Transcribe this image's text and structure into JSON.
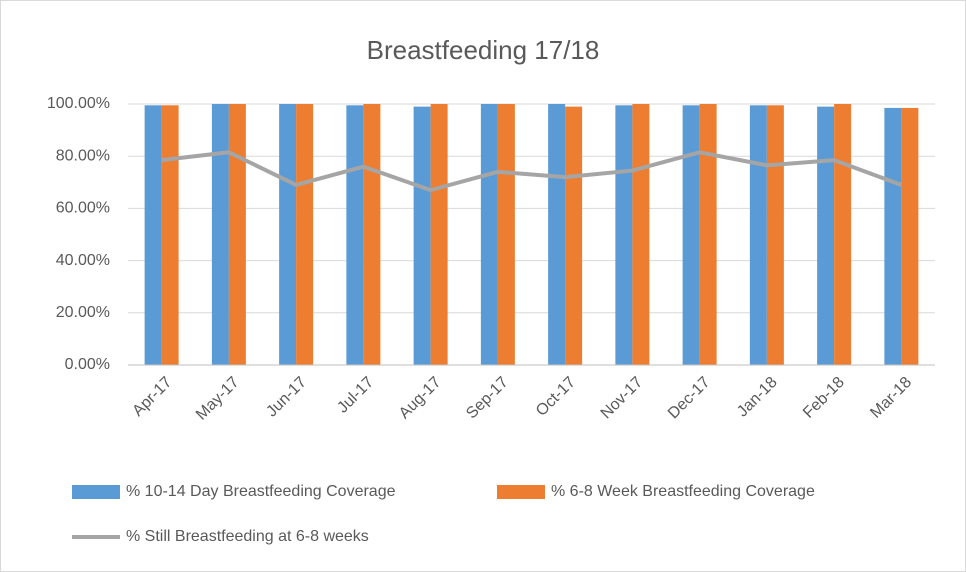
{
  "chart_data": {
    "type": "bar",
    "title": "Breastfeeding 17/18",
    "categories": [
      "Apr-17",
      "May-17",
      "Jun-17",
      "Jul-17",
      "Aug-17",
      "Sep-17",
      "Oct-17",
      "Nov-17",
      "Dec-17",
      "Jan-18",
      "Feb-18",
      "Mar-18"
    ],
    "series": [
      {
        "name": "% 10-14 Day Breastfeeding Coverage",
        "color": "#5b9bd5",
        "type": "bar",
        "values": [
          99.5,
          100,
          100,
          99.5,
          99,
          100,
          100,
          99.5,
          99.5,
          99.5,
          99,
          98.5
        ]
      },
      {
        "name": "% 6-8 Week Breastfeeding Coverage",
        "color": "#ed7d31",
        "type": "bar",
        "values": [
          99.5,
          100,
          100,
          100,
          100,
          100,
          99,
          100,
          100,
          99.5,
          100,
          98.5
        ]
      },
      {
        "name": "% Still Breastfeeding at 6-8 weeks",
        "color": "#a5a5a5",
        "type": "line",
        "values": [
          78.5,
          81.5,
          69,
          76,
          67,
          74,
          72,
          74.5,
          81.5,
          76.5,
          78.5,
          69
        ]
      }
    ],
    "ylim": [
      0,
      100
    ],
    "yticks": [
      {
        "value": 0,
        "label": "0.00%"
      },
      {
        "value": 20,
        "label": "20.00%"
      },
      {
        "value": 40,
        "label": "40.00%"
      },
      {
        "value": 60,
        "label": "60.00%"
      },
      {
        "value": 80,
        "label": "80.00%"
      },
      {
        "value": 100,
        "label": "100.00%"
      }
    ],
    "grid": true,
    "legend": "bottom"
  }
}
